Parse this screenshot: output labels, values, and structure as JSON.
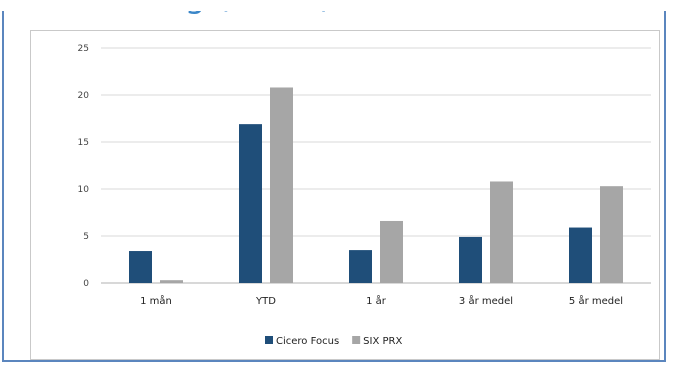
{
  "page": {
    "heading": "ocening (forts.)"
  },
  "chart_data": {
    "type": "bar",
    "categories": [
      "1 mån",
      "YTD",
      "1 år",
      "3 år medel",
      "5 år medel"
    ],
    "series": [
      {
        "name": "Cicero Focus",
        "color": "#1f4e79",
        "values": [
          3.4,
          16.9,
          3.5,
          4.9,
          5.9
        ]
      },
      {
        "name": "SIX PRX",
        "color": "#a6a6a6",
        "values": [
          0.3,
          20.8,
          6.6,
          10.8,
          10.3
        ]
      }
    ],
    "ylim": [
      0,
      25
    ],
    "yticks": [
      "0",
      "5",
      "10",
      "15",
      "20",
      "25"
    ],
    "grid": true,
    "legend": "bottom"
  }
}
